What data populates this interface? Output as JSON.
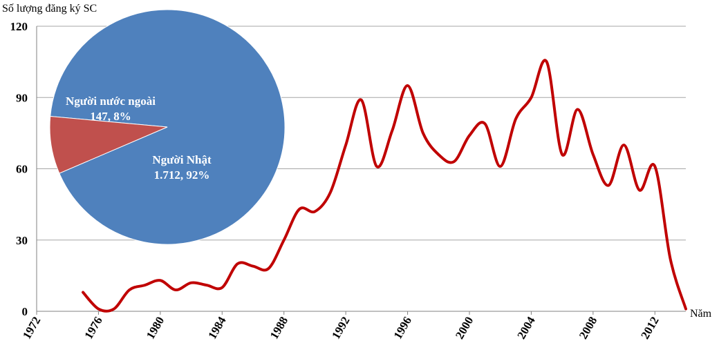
{
  "chart_data": [
    {
      "type": "line",
      "ylabel": "Số lượng đăng ký SC",
      "xlabel": "Năm",
      "ylim": [
        0,
        120
      ],
      "xlim": [
        1972,
        2014
      ],
      "yticks": [
        0,
        30,
        60,
        90,
        120
      ],
      "xticks": [
        1972,
        1976,
        1980,
        1984,
        1988,
        1992,
        1996,
        2000,
        2004,
        2008,
        2012
      ],
      "grid": "horizontal",
      "smooth": true,
      "series": [
        {
          "color": "#c00000",
          "x": [
            1975,
            1976,
            1977,
            1978,
            1979,
            1980,
            1981,
            1982,
            1983,
            1984,
            1985,
            1986,
            1987,
            1988,
            1989,
            1990,
            1991,
            1992,
            1993,
            1994,
            1995,
            1996,
            1997,
            1998,
            1999,
            2000,
            2001,
            2002,
            2003,
            2004,
            2005,
            2006,
            2007,
            2008,
            2009,
            2010,
            2011,
            2012,
            2013,
            2014
          ],
          "values": [
            8,
            1,
            1,
            9,
            11,
            13,
            9,
            12,
            11,
            10,
            20,
            19,
            18,
            30,
            43,
            42,
            50,
            70,
            89,
            61,
            76,
            95,
            75,
            66,
            63,
            74,
            79,
            61,
            81,
            90,
            105,
            66,
            85,
            66,
            53,
            70,
            51,
            61,
            22,
            1
          ]
        }
      ]
    },
    {
      "type": "pie",
      "slices": [
        {
          "name": "Người Nhật",
          "value": 1712,
          "value_label": "1.712,",
          "percent": 92,
          "percent_label": "92%",
          "color": "#4f81bd"
        },
        {
          "name": "Người nước ngoài",
          "value": 147,
          "value_label": "147,",
          "percent": 8,
          "percent_label": "8%",
          "color": "#c0504d"
        }
      ]
    }
  ]
}
